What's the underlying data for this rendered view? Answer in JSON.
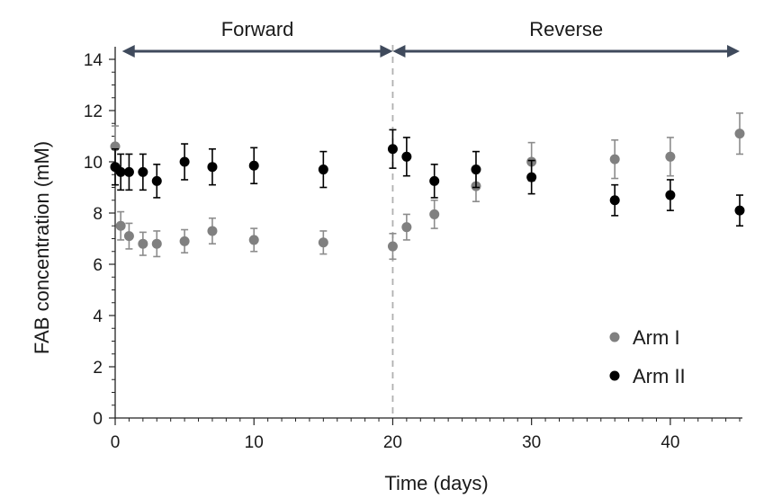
{
  "chart_data": {
    "type": "scatter",
    "title": "",
    "xlabel": "Time (days)",
    "ylabel": "FAB concentration (mM)",
    "xlim": [
      0,
      45
    ],
    "ylim": [
      0,
      14
    ],
    "xticks": [
      0,
      10,
      20,
      30,
      40
    ],
    "yticks": [
      0,
      2,
      4,
      6,
      8,
      10,
      12,
      14
    ],
    "grid": false,
    "legend_position": "bottom-right",
    "divider_x": 20,
    "phases": [
      {
        "label": "Forward",
        "start": 0.5,
        "end": 20
      },
      {
        "label": "Reverse",
        "start": 20,
        "end": 45
      }
    ],
    "series": [
      {
        "name": "Arm I",
        "color": "#808080",
        "error_color": "#8c8c8c",
        "points": [
          {
            "x": 0,
            "y": 10.6,
            "err": 0.8
          },
          {
            "x": 0.4,
            "y": 7.5,
            "err": 0.55
          },
          {
            "x": 1,
            "y": 7.1,
            "err": 0.5
          },
          {
            "x": 2,
            "y": 6.8,
            "err": 0.45
          },
          {
            "x": 3,
            "y": 6.8,
            "err": 0.5
          },
          {
            "x": 5,
            "y": 6.9,
            "err": 0.45
          },
          {
            "x": 7,
            "y": 7.3,
            "err": 0.5
          },
          {
            "x": 10,
            "y": 6.95,
            "err": 0.45
          },
          {
            "x": 15,
            "y": 6.85,
            "err": 0.45
          },
          {
            "x": 20,
            "y": 6.7,
            "err": 0.5
          },
          {
            "x": 21,
            "y": 7.45,
            "err": 0.5
          },
          {
            "x": 23,
            "y": 7.95,
            "err": 0.55
          },
          {
            "x": 26,
            "y": 9.05,
            "err": 0.6
          },
          {
            "x": 30,
            "y": 10.0,
            "err": 0.75
          },
          {
            "x": 36,
            "y": 10.1,
            "err": 0.75
          },
          {
            "x": 40,
            "y": 10.2,
            "err": 0.75
          },
          {
            "x": 45,
            "y": 11.1,
            "err": 0.8
          }
        ]
      },
      {
        "name": "Arm II",
        "color": "#000000",
        "error_color": "#000000",
        "points": [
          {
            "x": 0,
            "y": 9.8,
            "err": 0.7
          },
          {
            "x": 0.4,
            "y": 9.6,
            "err": 0.7
          },
          {
            "x": 1,
            "y": 9.6,
            "err": 0.7
          },
          {
            "x": 2,
            "y": 9.6,
            "err": 0.7
          },
          {
            "x": 3,
            "y": 9.25,
            "err": 0.65
          },
          {
            "x": 5,
            "y": 10.0,
            "err": 0.7
          },
          {
            "x": 7,
            "y": 9.8,
            "err": 0.7
          },
          {
            "x": 10,
            "y": 9.85,
            "err": 0.7
          },
          {
            "x": 15,
            "y": 9.7,
            "err": 0.7
          },
          {
            "x": 20,
            "y": 10.5,
            "err": 0.75
          },
          {
            "x": 21,
            "y": 10.2,
            "err": 0.75
          },
          {
            "x": 23,
            "y": 9.25,
            "err": 0.65
          },
          {
            "x": 26,
            "y": 9.7,
            "err": 0.7
          },
          {
            "x": 30,
            "y": 9.4,
            "err": 0.65
          },
          {
            "x": 36,
            "y": 8.5,
            "err": 0.6
          },
          {
            "x": 40,
            "y": 8.7,
            "err": 0.6
          },
          {
            "x": 45,
            "y": 8.1,
            "err": 0.6
          }
        ]
      }
    ]
  }
}
